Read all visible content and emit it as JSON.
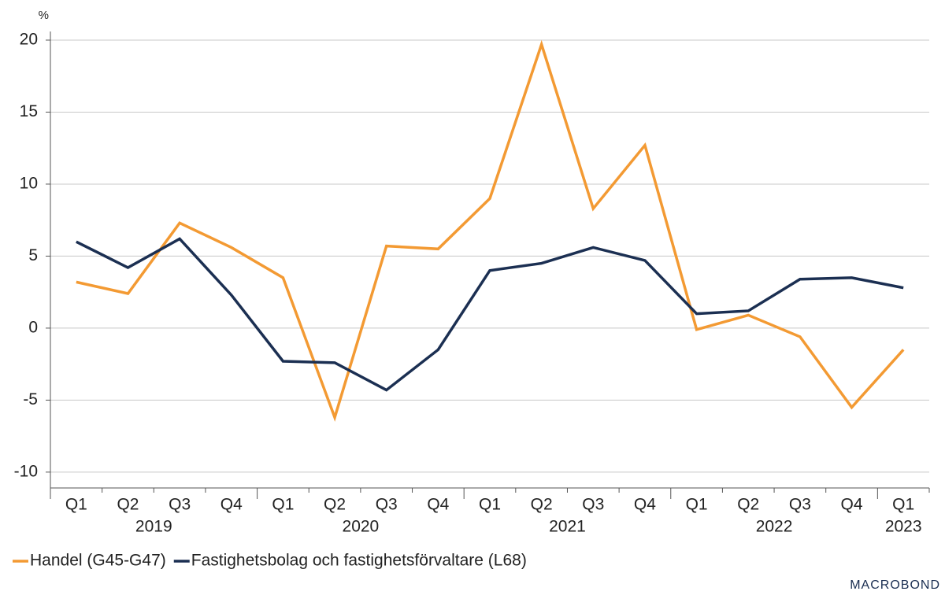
{
  "chart_data": {
    "type": "line",
    "y_unit": "%",
    "categories": [
      "Q1",
      "Q2",
      "Q3",
      "Q4",
      "Q1",
      "Q2",
      "Q3",
      "Q4",
      "Q1",
      "Q2",
      "Q3",
      "Q4",
      "Q1",
      "Q2",
      "Q3",
      "Q4",
      "Q1"
    ],
    "years": [
      "2019",
      "2020",
      "2021",
      "2022",
      "2023"
    ],
    "series": [
      {
        "name": "Handel (G45-G47)",
        "color": "#f39a33",
        "values": [
          3.2,
          2.4,
          7.3,
          5.6,
          3.5,
          -6.2,
          5.7,
          5.5,
          9.0,
          19.7,
          8.3,
          12.7,
          -0.1,
          0.9,
          -0.6,
          -5.5,
          -1.5
        ]
      },
      {
        "name": "Fastighetsbolag och fastighetsförvaltare (L68)",
        "color": "#1b2f52",
        "values": [
          6.0,
          4.2,
          6.2,
          2.3,
          -2.3,
          -2.4,
          -4.3,
          -1.5,
          4.0,
          4.5,
          5.6,
          4.7,
          1.0,
          1.2,
          3.4,
          3.5,
          2.8
        ]
      }
    ],
    "ylim": [
      -11.1,
      20.6
    ],
    "yticks": [
      -10,
      -5,
      0,
      5,
      10,
      15,
      20
    ],
    "grid": true,
    "source": "MACROBOND"
  }
}
